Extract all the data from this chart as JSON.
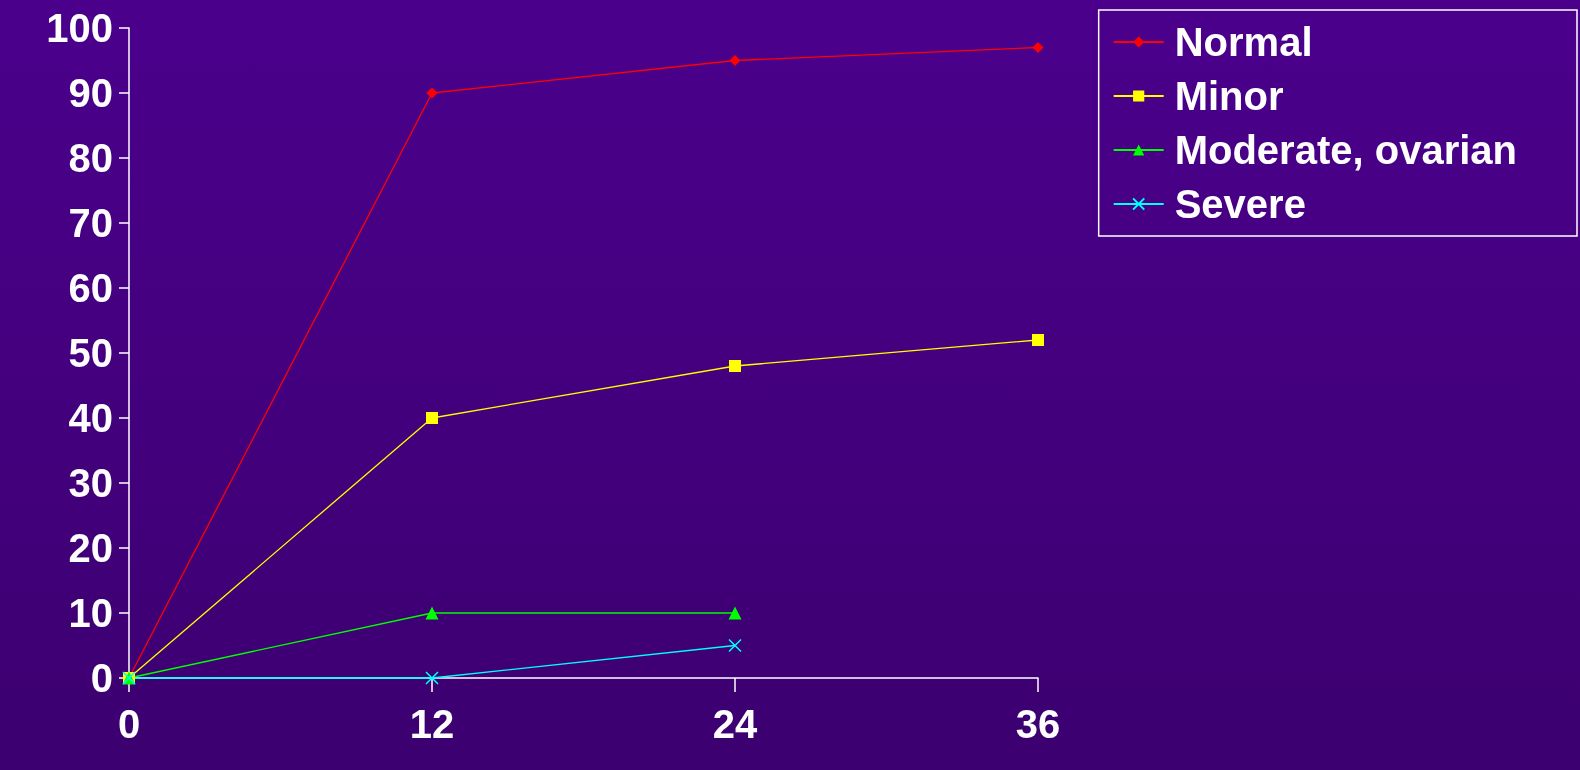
{
  "chart_data": {
    "type": "line",
    "x": [
      0,
      12,
      24,
      36
    ],
    "xlim": [
      0,
      36
    ],
    "xticks": [
      0,
      12,
      24,
      36
    ],
    "ylim": [
      0,
      100
    ],
    "yticks": [
      0,
      10,
      20,
      30,
      40,
      50,
      60,
      70,
      80,
      90,
      100
    ],
    "grid": false,
    "legend": "top right",
    "line_style": "solid",
    "series": [
      {
        "name": "Normal",
        "color": "#ff0000",
        "marker": "diamond",
        "values": [
          0,
          90,
          95,
          97
        ]
      },
      {
        "name": "Minor",
        "color": "#ffff00",
        "marker": "square",
        "values": [
          0,
          40,
          48,
          52
        ]
      },
      {
        "name": "Moderate, ovarian",
        "color": "#00ff00",
        "marker": "triangle",
        "values": [
          0,
          10,
          10,
          null
        ]
      },
      {
        "name": "Severe",
        "color": "#00ffff",
        "marker": "cross",
        "values": [
          0,
          0,
          5,
          null
        ]
      }
    ]
  }
}
